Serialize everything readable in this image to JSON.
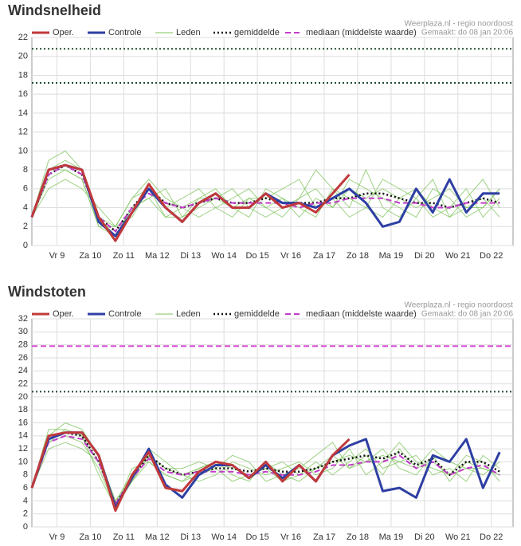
{
  "chart_data": [
    {
      "type": "line",
      "title": "Windsnelheid",
      "source": "Weerplaza.nl - regio noordoost",
      "created": "Gemaakt: do 08 jan 20:06",
      "x": [
        0,
        0.5,
        1,
        1.5,
        2,
        2.5,
        3,
        3.5,
        4,
        4.5,
        5,
        5.5,
        6,
        6.5,
        7,
        7.5,
        8,
        8.5,
        9,
        9.5,
        10,
        10.5,
        11,
        11.5,
        12,
        12.5,
        13,
        13.5,
        14
      ],
      "xlim": [
        0,
        14.4
      ],
      "xticks": [
        {
          "value": 0.75,
          "label": "Vr 9"
        },
        {
          "value": 1.75,
          "label": "Za 10"
        },
        {
          "value": 2.75,
          "label": "Zo 11"
        },
        {
          "value": 3.75,
          "label": "Ma 12"
        },
        {
          "value": 4.75,
          "label": "Di 13"
        },
        {
          "value": 5.75,
          "label": "Wo 14"
        },
        {
          "value": 6.75,
          "label": "Do 15"
        },
        {
          "value": 7.75,
          "label": "Vr 16"
        },
        {
          "value": 8.75,
          "label": "Za 17"
        },
        {
          "value": 9.75,
          "label": "Zo 18"
        },
        {
          "value": 10.75,
          "label": "Ma 19"
        },
        {
          "value": 11.75,
          "label": "Di 20"
        },
        {
          "value": 12.75,
          "label": "Wo 21"
        },
        {
          "value": 13.75,
          "label": "Do 22"
        }
      ],
      "ylim": [
        0,
        22
      ],
      "yticks": [
        0,
        2,
        4,
        6,
        8,
        10,
        12,
        14,
        16,
        18,
        20,
        22
      ],
      "grid": true,
      "reference_lines": [
        {
          "value": 17.2,
          "color": "#1f4a2e",
          "dash": "dotted"
        },
        {
          "value": 20.8,
          "color": "#1f4a2e",
          "dash": "dotted"
        }
      ],
      "series": [
        {
          "name": "Oper.",
          "color": "#c0393b",
          "dash": "solid",
          "values": [
            3,
            8,
            8.5,
            8,
            3,
            0.5,
            3.5,
            6.5,
            4,
            2.5,
            4.5,
            5.5,
            4,
            4,
            5.5,
            4,
            4.5,
            3.5,
            5.5,
            7.5,
            null,
            null,
            null,
            null,
            null,
            null,
            null,
            null,
            null
          ]
        },
        {
          "name": "Controle",
          "color": "#2e3fa3",
          "dash": "solid",
          "values": [
            3,
            8,
            8.5,
            8,
            2.5,
            1,
            3.5,
            6,
            4,
            2.5,
            4.5,
            5.5,
            4,
            4,
            5.5,
            4.5,
            4.5,
            4,
            5,
            6,
            4.5,
            2,
            2.5,
            6,
            3.5,
            7,
            3.5,
            5.5,
            5.5
          ]
        },
        {
          "name": "Leden",
          "color": "#7cc35a",
          "dash": "solid",
          "members": [
            [
              3,
              7,
              8,
              7,
              2,
              1,
              4,
              5,
              3,
              3,
              5,
              6,
              4,
              3,
              6,
              5,
              4,
              3,
              6,
              5,
              4,
              3,
              5,
              6,
              4,
              3,
              5,
              7,
              4
            ],
            [
              3,
              8,
              9,
              8,
              3,
              2,
              5,
              7,
              5,
              4,
              3,
              4,
              5,
              6,
              4,
              3,
              5,
              6,
              4,
              7,
              6,
              5,
              4,
              3,
              6,
              5,
              3,
              4,
              6
            ],
            [
              3,
              6,
              7,
              6,
              4,
              2,
              3,
              6,
              4,
              5,
              6,
              4,
              3,
              5,
              5,
              6,
              7,
              4,
              5,
              3,
              4,
              7,
              6,
              5,
              3,
              4,
              6,
              3,
              5
            ],
            [
              3,
              9,
              10,
              8,
              3,
              1,
              4,
              5,
              6,
              3,
              4,
              5,
              6,
              4,
              3,
              4,
              5,
              8,
              6,
              4,
              8,
              4,
              3,
              5,
              7,
              3,
              4,
              5,
              3
            ],
            [
              3,
              8,
              8,
              7,
              2,
              2,
              5,
              6,
              3,
              4,
              5,
              5,
              4,
              5,
              4,
              5,
              3,
              5,
              4,
              6,
              5,
              6,
              5,
              4,
              5,
              6,
              4,
              4,
              6
            ]
          ]
        },
        {
          "name": "gemiddelde",
          "color": "#111111",
          "dash": "dotted",
          "values": [
            3,
            7.5,
            8.5,
            7.5,
            3,
            1.5,
            4,
            6,
            4.5,
            4,
            4.5,
            5,
            4.5,
            4.5,
            5,
            4.5,
            4.5,
            4.5,
            5,
            5,
            5.5,
            5.5,
            5,
            4.5,
            4.5,
            4,
            4.5,
            5,
            4.5
          ]
        },
        {
          "name": "mediaan (middelste waarde)",
          "color": "#c33cc9",
          "dash": "dashed",
          "values": [
            3,
            7.5,
            8.5,
            7.5,
            3,
            1.5,
            4,
            5.5,
            4.5,
            4,
            4.5,
            5,
            4.5,
            4.5,
            4.5,
            4.5,
            4,
            4.5,
            4.5,
            5,
            5,
            5,
            4.5,
            4.5,
            4,
            4,
            4.5,
            4.5,
            4.5
          ]
        }
      ]
    },
    {
      "type": "line",
      "title": "Windstoten",
      "source": "Weerplaza.nl - regio noordoost",
      "created": "Gemaakt: do 08 jan 20:06",
      "x": [
        0,
        0.5,
        1,
        1.5,
        2,
        2.5,
        3,
        3.5,
        4,
        4.5,
        5,
        5.5,
        6,
        6.5,
        7,
        7.5,
        8,
        8.5,
        9,
        9.5,
        10,
        10.5,
        11,
        11.5,
        12,
        12.5,
        13,
        13.5,
        14
      ],
      "xlim": [
        0,
        14.4
      ],
      "xticks": [
        {
          "value": 0.75,
          "label": "Vr 9"
        },
        {
          "value": 1.75,
          "label": "Za 10"
        },
        {
          "value": 2.75,
          "label": "Zo 11"
        },
        {
          "value": 3.75,
          "label": "Ma 12"
        },
        {
          "value": 4.75,
          "label": "Di 13"
        },
        {
          "value": 5.75,
          "label": "Wo 14"
        },
        {
          "value": 6.75,
          "label": "Do 15"
        },
        {
          "value": 7.75,
          "label": "Vr 16"
        },
        {
          "value": 8.75,
          "label": "Za 17"
        },
        {
          "value": 9.75,
          "label": "Zo 18"
        },
        {
          "value": 10.75,
          "label": "Ma 19"
        },
        {
          "value": 11.75,
          "label": "Di 20"
        },
        {
          "value": 12.75,
          "label": "Wo 21"
        },
        {
          "value": 13.75,
          "label": "Do 22"
        }
      ],
      "ylim": [
        0,
        32
      ],
      "yticks": [
        0,
        2,
        4,
        6,
        8,
        10,
        12,
        14,
        16,
        18,
        20,
        22,
        24,
        26,
        28,
        30,
        32
      ],
      "grid": true,
      "reference_lines": [
        {
          "value": 20.8,
          "color": "#1f4a2e",
          "dash": "dotted"
        },
        {
          "value": 27.8,
          "color": "#d94fd6",
          "dash": "dashed"
        }
      ],
      "series": [
        {
          "name": "Oper.",
          "color": "#c0393b",
          "dash": "solid",
          "values": [
            6,
            14,
            14.5,
            14.5,
            11,
            2.5,
            8,
            11.5,
            6,
            5.5,
            8.5,
            10,
            9.5,
            7.5,
            10,
            7,
            9.5,
            7,
            11,
            13.5,
            null,
            null,
            null,
            null,
            null,
            null,
            null,
            null,
            null
          ]
        },
        {
          "name": "Controle",
          "color": "#2e3fa3",
          "dash": "solid",
          "values": [
            6,
            13.5,
            14.5,
            14.5,
            11,
            3,
            7.5,
            12,
            6.5,
            4.5,
            8,
            9.5,
            9.5,
            7.5,
            9.5,
            7.5,
            9.5,
            7,
            11,
            12.5,
            13.5,
            5.5,
            6,
            4.5,
            11,
            10,
            13.5,
            6,
            11.5
          ]
        },
        {
          "name": "Leden",
          "color": "#7cc35a",
          "dash": "solid",
          "members": [
            [
              6,
              13,
              14,
              13,
              9,
              3,
              7,
              10,
              8,
              7,
              9,
              10,
              8,
              7,
              10,
              8,
              7,
              9,
              11,
              9,
              10,
              12,
              9,
              8,
              11,
              7,
              10,
              9,
              8
            ],
            [
              6,
              14,
              16,
              15,
              11,
              4,
              8,
              12,
              10,
              8,
              7,
              8,
              10,
              9,
              8,
              9,
              10,
              8,
              9,
              12,
              8,
              10,
              13,
              10,
              9,
              8,
              11,
              10,
              7
            ],
            [
              6,
              12,
              13,
              12,
              10,
              4,
              7,
              11,
              9,
              9,
              10,
              9,
              7,
              8,
              9,
              10,
              8,
              10,
              8,
              10,
              12,
              9,
              10,
              11,
              8,
              9,
              7,
              11,
              9
            ],
            [
              6,
              15,
              15,
              14,
              8,
              3,
              9,
              10,
              8,
              7,
              8,
              9,
              11,
              10,
              7,
              8,
              9,
              11,
              13,
              9,
              11,
              8,
              12,
              9,
              12,
              10,
              9,
              8,
              10
            ],
            [
              6,
              13,
              15,
              14,
              10,
              3,
              8,
              11,
              9,
              8,
              9,
              10,
              9,
              8,
              9,
              7,
              8,
              9,
              10,
              11,
              10,
              11,
              10,
              9,
              10,
              8,
              9,
              9,
              8
            ]
          ]
        },
        {
          "name": "gemiddelde",
          "color": "#111111",
          "dash": "dotted",
          "values": [
            6,
            13.5,
            14.5,
            14,
            10,
            3.5,
            7.5,
            11,
            9,
            8,
            8.5,
            9,
            9,
            8.5,
            9,
            8.5,
            8.5,
            9,
            10,
            10.5,
            11,
            10.5,
            11.5,
            9.5,
            10.5,
            8,
            10,
            10,
            8.5
          ]
        },
        {
          "name": "mediaan (middelste waarde)",
          "color": "#c33cc9",
          "dash": "dashed",
          "values": [
            6,
            13,
            14,
            13.5,
            10,
            3.5,
            7.5,
            10.5,
            8.5,
            8,
            8.5,
            8.5,
            8.5,
            8,
            8.5,
            8,
            8,
            8.5,
            9.5,
            9.5,
            10,
            10,
            11,
            9,
            10,
            8,
            9,
            9.5,
            8
          ]
        }
      ]
    }
  ]
}
